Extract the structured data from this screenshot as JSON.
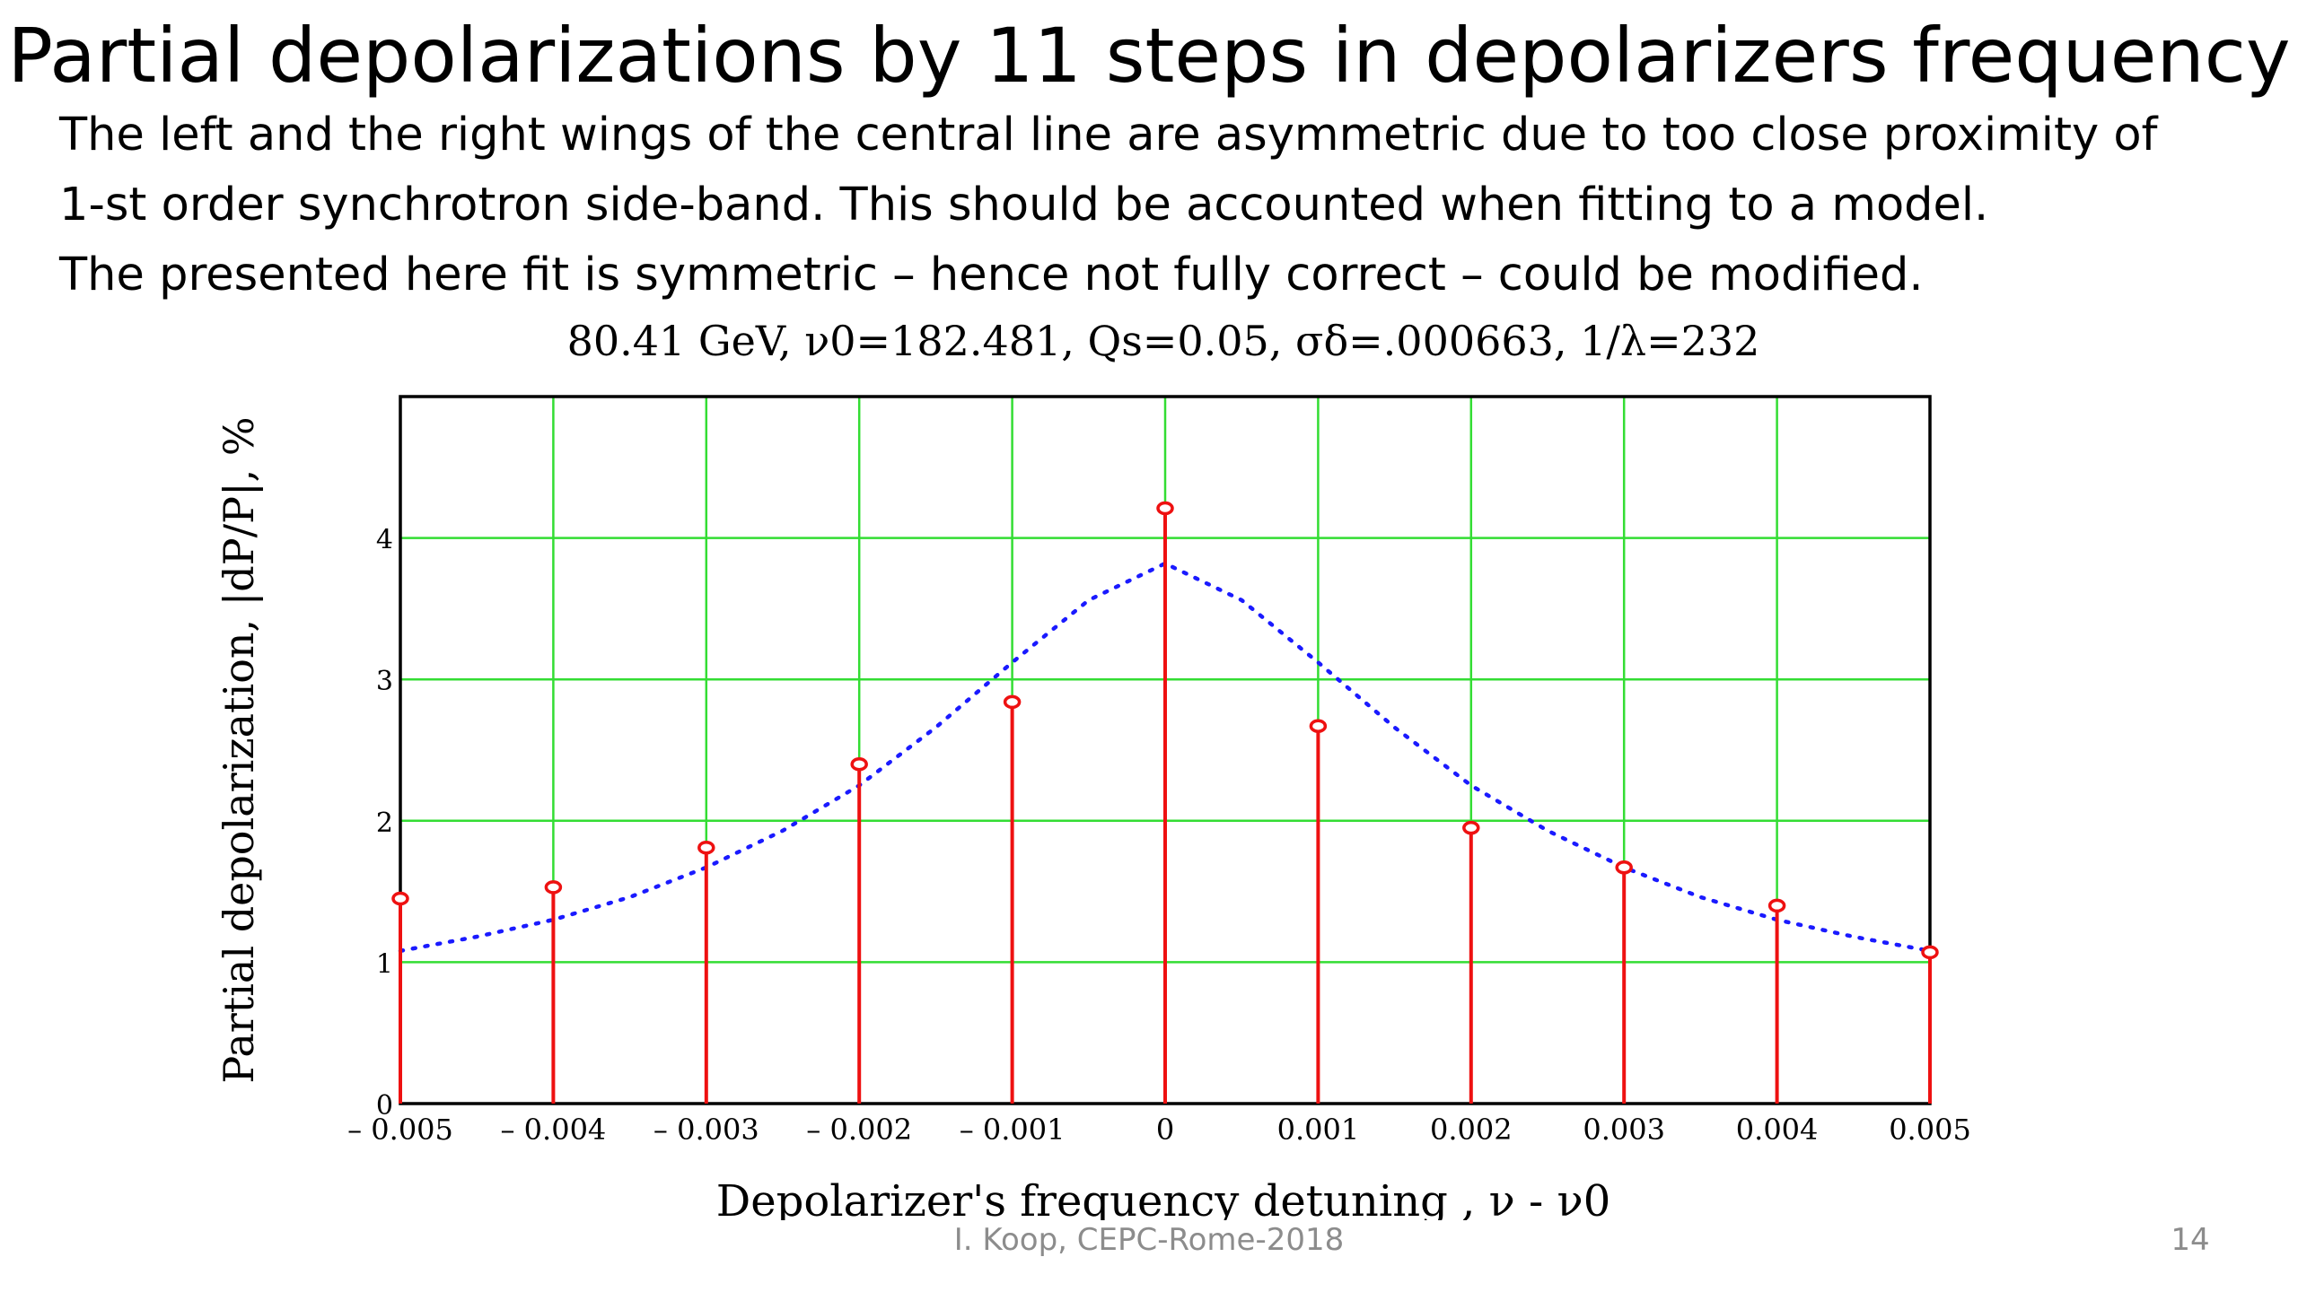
{
  "slide": {
    "title": "Partial depolarizations by 11 steps in depolarizers frequency",
    "notes": [
      "The left and the right wings of the central line are asymmetric  due to too close proximity of",
      "1-st order synchrotron side-band.  This should be accounted when fitting to a model.",
      "The presented here fit is symmetric – hence not fully correct – could be modified."
    ],
    "footer": "I. Koop, CEPC-Rome-2018",
    "page_number": "14"
  },
  "chart_data": {
    "type": "scatter",
    "title": "80.41 GeV, ν0=182.481, Qs=0.05, σδ=.000663, 1/λ=232",
    "xlabel": "Depolarizer's frequency detuning , ν - ν0",
    "ylabel": "Partial depolarization, |dP/P|,  %",
    "xlim": [
      -0.005,
      0.005
    ],
    "ylim": [
      0,
      5
    ],
    "x_ticks": [
      -0.005,
      -0.004,
      -0.003,
      -0.002,
      -0.001,
      0,
      0.001,
      0.002,
      0.003,
      0.004,
      0.005
    ],
    "x_tick_labels": [
      "– 0.005",
      "– 0.004",
      "– 0.003",
      "– 0.002",
      "– 0.001",
      "0",
      "0.001",
      "0.002",
      "0.003",
      "0.004",
      "0.005"
    ],
    "y_ticks": [
      0,
      1,
      2,
      3,
      4
    ],
    "y_tick_labels": [
      "0",
      "1",
      "2",
      "3",
      "4"
    ],
    "grid": true,
    "colors": {
      "grid": "#33dd33",
      "measured": "#ee1111",
      "fit": "#1a1aff",
      "frame": "#000000"
    },
    "series": [
      {
        "style": "stem-circle",
        "x": [
          -0.005,
          -0.004,
          -0.003,
          -0.002,
          -0.001,
          0,
          0.001,
          0.002,
          0.003,
          0.004,
          0.005
        ],
        "y": [
          1.45,
          1.53,
          1.81,
          2.4,
          2.84,
          4.21,
          2.67,
          1.95,
          1.67,
          1.4,
          1.07
        ]
      },
      {
        "style": "dotted-line",
        "x": [
          -0.005,
          -0.0045,
          -0.004,
          -0.0035,
          -0.003,
          -0.0025,
          -0.002,
          -0.0015,
          -0.001,
          -0.0005,
          0,
          0.0005,
          0.001,
          0.0015,
          0.002,
          0.0025,
          0.003,
          0.0035,
          0.004,
          0.0045,
          0.005
        ],
        "y": [
          1.08,
          1.18,
          1.3,
          1.46,
          1.67,
          1.93,
          2.25,
          2.66,
          3.12,
          3.56,
          3.82,
          3.56,
          3.12,
          2.66,
          2.25,
          1.93,
          1.67,
          1.46,
          1.3,
          1.18,
          1.08
        ]
      }
    ]
  }
}
